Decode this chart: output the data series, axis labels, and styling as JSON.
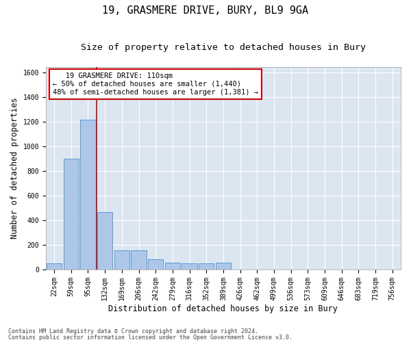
{
  "title1": "19, GRASMERE DRIVE, BURY, BL9 9GA",
  "title2": "Size of property relative to detached houses in Bury",
  "xlabel": "Distribution of detached houses by size in Bury",
  "ylabel": "Number of detached properties",
  "annotation_line1": "   19 GRASMERE DRIVE: 110sqm   ",
  "annotation_line2": "← 50% of detached houses are smaller (1,440)",
  "annotation_line3": "48% of semi-detached houses are larger (1,381) →",
  "footnote1": "Contains HM Land Registry data © Crown copyright and database right 2024.",
  "footnote2": "Contains public sector information licensed under the Open Government Licence v3.0.",
  "categories": [
    "22sqm",
    "59sqm",
    "95sqm",
    "132sqm",
    "169sqm",
    "206sqm",
    "242sqm",
    "279sqm",
    "316sqm",
    "352sqm",
    "389sqm",
    "426sqm",
    "462sqm",
    "499sqm",
    "536sqm",
    "573sqm",
    "609sqm",
    "646sqm",
    "683sqm",
    "719sqm",
    "756sqm"
  ],
  "values": [
    50,
    900,
    1220,
    470,
    155,
    155,
    85,
    55,
    50,
    50,
    55,
    0,
    0,
    0,
    0,
    0,
    0,
    0,
    0,
    0,
    0
  ],
  "bar_color": "#aec6e8",
  "bar_edge_color": "#5b9bd5",
  "red_line_x": 2.5,
  "vline_color": "#cc0000",
  "background_color": "#dce6f1",
  "annotation_box_color": "#cc0000",
  "ylim": [
    0,
    1650
  ],
  "yticks": [
    0,
    200,
    400,
    600,
    800,
    1000,
    1200,
    1400,
    1600
  ],
  "grid_color": "#ffffff",
  "title_fontsize": 11,
  "subtitle_fontsize": 9.5,
  "axis_label_fontsize": 8.5,
  "tick_fontsize": 7,
  "annotation_fontsize": 7.5,
  "footnote_fontsize": 6
}
